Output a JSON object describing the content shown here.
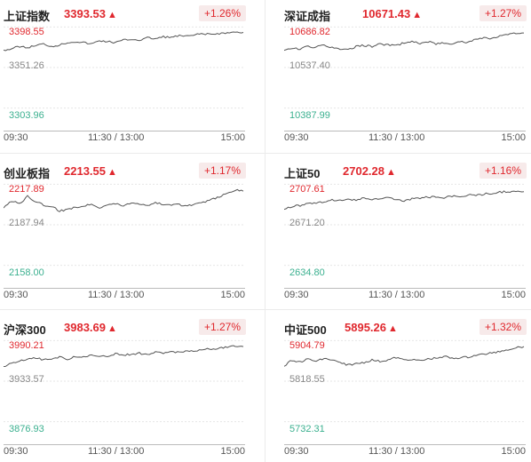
{
  "panels": [
    {
      "name": "上证指数",
      "price": "3393.53",
      "arrow": "▲",
      "change": "+1.26%",
      "labels": {
        "high": "3398.55",
        "mid": "3351.26",
        "low": "3303.96"
      },
      "times": {
        "start": "09:30",
        "mid": "11:30 / 13:00",
        "end": "15:00"
      }
    },
    {
      "name": "深证成指",
      "price": "10671.43",
      "arrow": "▲",
      "change": "+1.27%",
      "labels": {
        "high": "10686.82",
        "mid": "10537.40",
        "low": "10387.99"
      },
      "times": {
        "start": "09:30",
        "mid": "11:30 / 13:00",
        "end": "15:00"
      }
    },
    {
      "name": "创业板指",
      "price": "2213.55",
      "arrow": "▲",
      "change": "+1.17%",
      "labels": {
        "high": "2217.89",
        "mid": "2187.94",
        "low": "2158.00"
      },
      "times": {
        "start": "09:30",
        "mid": "11:30 / 13:00",
        "end": "15:00"
      }
    },
    {
      "name": "上证50",
      "price": "2702.28",
      "arrow": "▲",
      "change": "+1.16%",
      "labels": {
        "high": "2707.61",
        "mid": "2671.20",
        "low": "2634.80"
      },
      "times": {
        "start": "09:30",
        "mid": "11:30 / 13:00",
        "end": "15:00"
      }
    },
    {
      "name": "沪深300",
      "price": "3983.69",
      "arrow": "▲",
      "change": "+1.27%",
      "labels": {
        "high": "3990.21",
        "mid": "3933.57",
        "low": "3876.93"
      },
      "times": {
        "start": "09:30",
        "mid": "11:30 / 13:00",
        "end": "15:00"
      }
    },
    {
      "name": "中证500",
      "price": "5895.26",
      "arrow": "▲",
      "change": "+1.32%",
      "labels": {
        "high": "5904.79",
        "mid": "5818.55",
        "low": "5732.31"
      },
      "times": {
        "start": "09:30",
        "mid": "11:30 / 13:00",
        "end": "15:00"
      }
    }
  ],
  "colors": {
    "up": "#e0282e",
    "down": "#3bb08f",
    "line": "#555555",
    "baseline": "#bbbbbb"
  }
}
